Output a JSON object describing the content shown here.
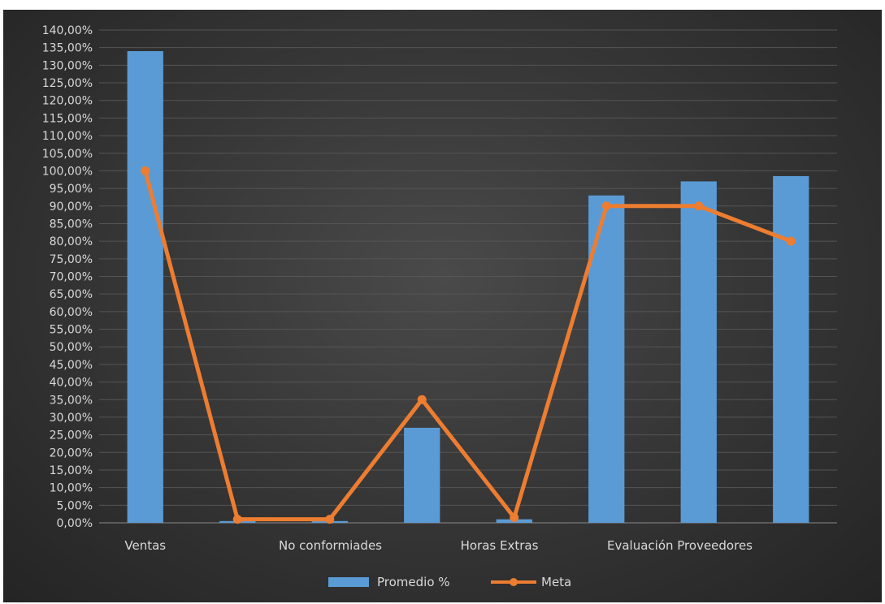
{
  "chart_data": {
    "type": "bar",
    "title": "",
    "categories": [
      "Ventas",
      "",
      "No conformiades",
      "",
      "Horas Extras",
      "",
      "Evaluación Proveedores",
      ""
    ],
    "series": [
      {
        "name": "Promedio %",
        "kind": "bar",
        "color": "#5b9bd5",
        "values": [
          134,
          0.5,
          0.5,
          27,
          1,
          93,
          97,
          98.5
        ]
      },
      {
        "name": "Meta",
        "kind": "line",
        "color": "#ed7d31",
        "values": [
          100,
          1,
          1,
          35,
          1.5,
          90,
          90,
          80
        ]
      }
    ],
    "ylim": [
      0,
      140
    ],
    "ytick_step": 5,
    "ytick_labels": [
      "0,00%",
      "5,00%",
      "10,00%",
      "15,00%",
      "20,00%",
      "25,00%",
      "30,00%",
      "35,00%",
      "40,00%",
      "45,00%",
      "50,00%",
      "55,00%",
      "60,00%",
      "65,00%",
      "70,00%",
      "75,00%",
      "80,00%",
      "85,00%",
      "90,00%",
      "95,00%",
      "100,00%",
      "105,00%",
      "110,00%",
      "115,00%",
      "120,00%",
      "125,00%",
      "130,00%",
      "135,00%",
      "140,00%"
    ],
    "xlabel": "",
    "ylabel": "",
    "grid": true,
    "legend": "bottom",
    "background": "#3a3a3a"
  }
}
